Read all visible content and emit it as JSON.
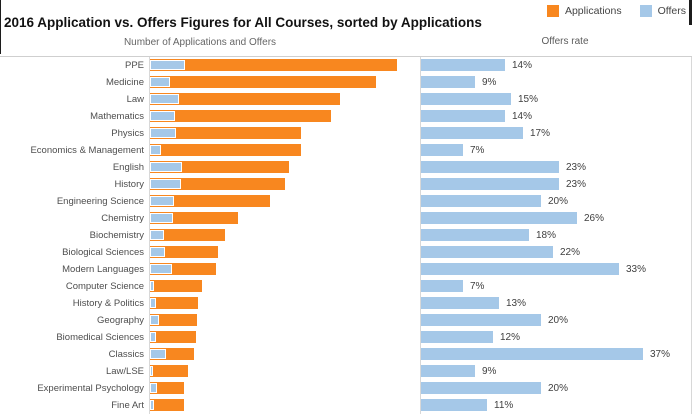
{
  "header": {
    "title": "2016 Application vs. Offers Figures for All Courses, sorted by Applications",
    "left_axis_title": "Number of Applications and Offers",
    "right_axis_title": "Offers rate",
    "legend": [
      {
        "label": "Applications",
        "color": "#F8871F"
      },
      {
        "label": "Offers",
        "color": "#A5C8E8"
      }
    ]
  },
  "colors": {
    "applications_bar": "#F8871F",
    "offers_bar": "#A5C8E8",
    "panel_border": "#d8d8d8"
  },
  "chart_data": {
    "type": "bar",
    "orientation": "horizontal",
    "title": "2016 Application vs. Offers Figures for All Courses, sorted by Applications",
    "panels": [
      "Number of Applications and Offers",
      "Offers rate"
    ],
    "legend_position": "top-right",
    "grid": false,
    "categories": [
      "PPE",
      "Medicine",
      "Law",
      "Mathematics",
      "Physics",
      "Economics & Management",
      "English",
      "History",
      "Engineering Science",
      "Chemistry",
      "Biochemistry",
      "Biological Sciences",
      "Modern Languages",
      "Computer Science",
      "History & Politics",
      "Geography",
      "Biomedical Sciences",
      "Classics",
      "Law/LSE",
      "Experimental Psychology",
      "Fine Art"
    ],
    "series": [
      {
        "name": "Applications",
        "color": "#F8871F",
        "values": [
          1900,
          1740,
          1460,
          1390,
          1160,
          1160,
          1070,
          1040,
          920,
          680,
          580,
          520,
          510,
          400,
          370,
          360,
          350,
          340,
          290,
          260,
          260
        ]
      },
      {
        "name": "Offers",
        "color": "#A5C8E8",
        "values": [
          266,
          157,
          219,
          195,
          197,
          81,
          246,
          239,
          184,
          177,
          104,
          114,
          168,
          28,
          48,
          72,
          42,
          126,
          26,
          52,
          29
        ]
      }
    ],
    "offers_rate_percent": [
      14,
      9,
      15,
      14,
      17,
      7,
      23,
      23,
      20,
      26,
      18,
      22,
      33,
      7,
      13,
      20,
      12,
      37,
      9,
      20,
      11
    ],
    "offers_rate_labels": [
      "14%",
      "9%",
      "15%",
      "14%",
      "17%",
      "7%",
      "23%",
      "23%",
      "20%",
      "26%",
      "18%",
      "22%",
      "33%",
      "7%",
      "13%",
      "20%",
      "12%",
      "37%",
      "9%",
      "20%",
      "11%"
    ],
    "left_axis": {
      "min": 0,
      "max": 2000,
      "note_values_estimated_from_bar_lengths": true
    },
    "right_axis": {
      "min": 0,
      "max": 40,
      "unit": "%"
    }
  }
}
